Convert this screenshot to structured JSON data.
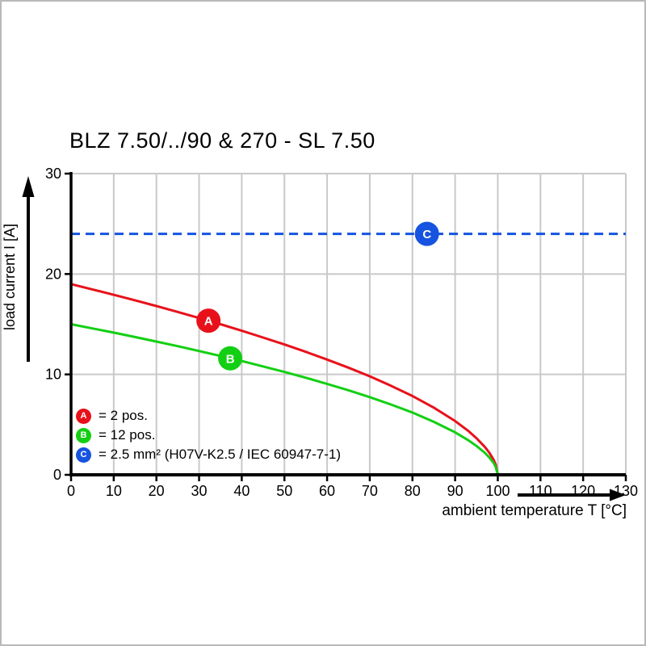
{
  "page": {
    "title": "BLZ 7.50/../90 & 270 - SL 7.50"
  },
  "chart_data": {
    "type": "line",
    "title": "BLZ 7.50/../90 & 270 - SL 7.50",
    "xlabel": "ambient temperature T [°C]",
    "ylabel": "load current I [A]",
    "xlim": [
      0,
      130
    ],
    "ylim": [
      0,
      30
    ],
    "x_ticks": [
      0,
      10,
      20,
      30,
      40,
      50,
      60,
      70,
      80,
      90,
      100,
      110,
      120,
      130
    ],
    "y_ticks": [
      0,
      10,
      20,
      30
    ],
    "grid": true,
    "colors": {
      "grid": "#c9c9c9",
      "axis": "#000000"
    },
    "series": [
      {
        "id": "A",
        "label": "2 pos.",
        "color": "#e8111a",
        "style": "solid",
        "marker": {
          "t": 32.2,
          "i": 15.35
        },
        "points": [
          [
            0,
            19
          ],
          [
            5,
            18.47
          ],
          [
            10,
            17.93
          ],
          [
            15,
            17.38
          ],
          [
            20,
            16.81
          ],
          [
            25,
            16.22
          ],
          [
            30,
            15.62
          ],
          [
            35,
            15.0
          ],
          [
            40,
            14.35
          ],
          [
            45,
            13.67
          ],
          [
            50,
            12.98
          ],
          [
            55,
            12.25
          ],
          [
            60,
            11.48
          ],
          [
            65,
            10.67
          ],
          [
            70,
            9.81
          ],
          [
            75,
            8.86
          ],
          [
            80,
            7.85
          ],
          [
            85,
            6.69
          ],
          [
            90,
            5.36
          ],
          [
            93,
            4.4
          ],
          [
            95,
            3.65
          ],
          [
            97,
            2.76
          ],
          [
            98,
            2.21
          ],
          [
            99,
            1.51
          ],
          [
            99.5,
            1.03
          ],
          [
            100,
            0
          ]
        ]
      },
      {
        "id": "B",
        "label": "12 pos.",
        "color": "#13cf13",
        "style": "solid",
        "marker": {
          "t": 37.3,
          "i": 11.6
        },
        "points": [
          [
            0,
            15
          ],
          [
            5,
            14.58
          ],
          [
            10,
            14.16
          ],
          [
            15,
            13.72
          ],
          [
            20,
            13.27
          ],
          [
            25,
            12.81
          ],
          [
            30,
            12.33
          ],
          [
            35,
            11.84
          ],
          [
            40,
            11.33
          ],
          [
            45,
            10.79
          ],
          [
            50,
            10.25
          ],
          [
            55,
            9.67
          ],
          [
            60,
            9.06
          ],
          [
            65,
            8.42
          ],
          [
            70,
            7.74
          ],
          [
            75,
            7.0
          ],
          [
            80,
            6.2
          ],
          [
            85,
            5.28
          ],
          [
            90,
            4.23
          ],
          [
            93,
            3.47
          ],
          [
            95,
            2.88
          ],
          [
            97,
            2.18
          ],
          [
            98,
            1.74
          ],
          [
            99,
            1.19
          ],
          [
            99.5,
            0.81
          ],
          [
            100,
            0
          ]
        ]
      },
      {
        "id": "C",
        "label": "2.5 mm² (H07V-K2.5 / IEC 60947-7-1)",
        "color": "#1653e0",
        "style": "dashed",
        "value": 24,
        "marker": {
          "t": 83.4,
          "i": 24
        },
        "points": [
          [
            0,
            24
          ],
          [
            130,
            24
          ]
        ]
      }
    ],
    "legend": {
      "position": "lower-left",
      "rows": [
        {
          "badge": "A",
          "text": "= 2 pos."
        },
        {
          "badge": "B",
          "text": "= 12 pos."
        },
        {
          "badge": "C",
          "text": "= 2.5 mm² (H07V-K2.5 / IEC 60947-7-1)"
        }
      ]
    }
  }
}
